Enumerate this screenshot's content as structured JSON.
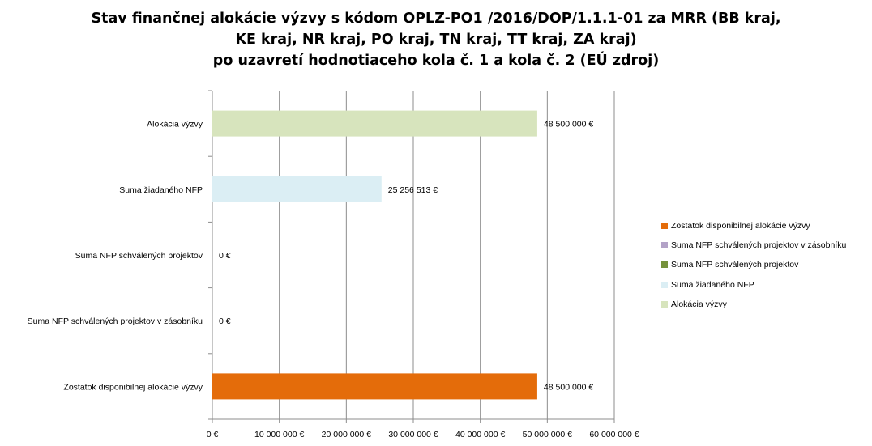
{
  "title": {
    "line1": "Stav finančnej alokácie výzvy s kódom OPLZ-PO1 /2016/DOP/1.1.1-01 za MRR (BB kraj,",
    "line2": "KE kraj, NR kraj, PO kraj, TN kraj, TT kraj, ZA kraj)",
    "line3": "po uzavretí hodnotiaceho kola č. 1 a kola č. 2 (EÚ zdroj)"
  },
  "chart_data": {
    "type": "bar",
    "orientation": "horizontal",
    "title": "Stav finančnej alokácie výzvy s kódom OPLZ-PO1 /2016/DOP/1.1.1-01 za MRR (BB kraj, KE kraj, NR kraj, PO kraj, TN kraj, TT kraj, ZA kraj) po uzavretí hodnotiaceho kola č. 1 a kola č. 2 (EÚ zdroj)",
    "categories": [
      "Alokácia výzvy",
      "Suma žiadaného NFP",
      "Suma NFP schválených projektov",
      "Suma NFP schválených projektov v zásobníku",
      "Zostatok disponibilnej alokácie výzvy"
    ],
    "values": [
      48500000,
      25256513,
      0,
      0,
      48500000
    ],
    "data_labels": [
      "48 500 000 €",
      "25 256 513 €",
      "0 €",
      "0 €",
      "48 500 000 €"
    ],
    "colors": [
      "#d7e4bd",
      "#dbeef4",
      "#76923c",
      "#b3a2c7",
      "#e46c0a"
    ],
    "xlim": [
      0,
      60000000
    ],
    "x_ticks": [
      0,
      10000000,
      20000000,
      30000000,
      40000000,
      50000000,
      60000000
    ],
    "x_tick_labels": [
      "0 €",
      "10 000 000 €",
      "20 000 000 €",
      "30 000 000 €",
      "40 000 000 €",
      "50 000 000 €",
      "60 000 000 €"
    ],
    "grid": "vertical",
    "legend_position": "right",
    "legend": [
      {
        "label": "Zostatok disponibilnej alokácie výzvy",
        "color": "#e46c0a"
      },
      {
        "label": "Suma NFP schválených projektov v zásobníku",
        "color": "#b3a2c7"
      },
      {
        "label": "Suma NFP schválených projektov",
        "color": "#76923c"
      },
      {
        "label": "Suma žiadaného NFP",
        "color": "#dbeef4"
      },
      {
        "label": "Alokácia výzvy",
        "color": "#d7e4bd"
      }
    ]
  }
}
